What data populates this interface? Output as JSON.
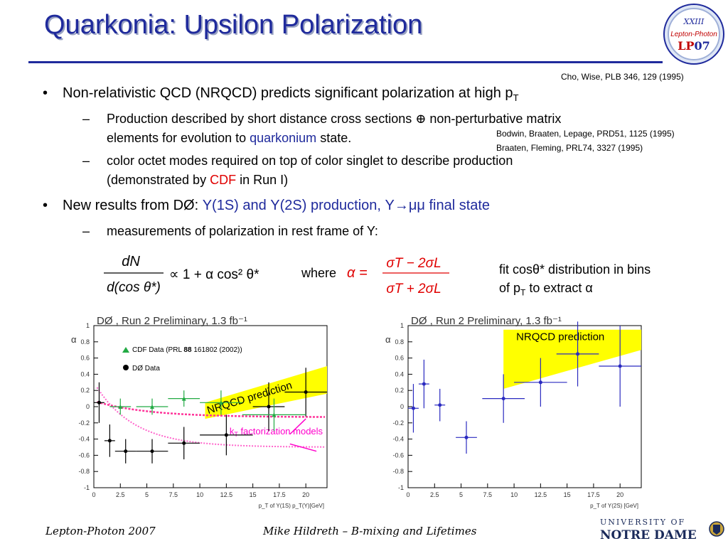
{
  "slide": {
    "title": "Quarkonia: Upsilon Polarization",
    "logo": {
      "roman": "XXIII",
      "line2": "Lepton-Photon",
      "lp": "LP",
      "yy": "07"
    },
    "citations": [
      "Cho, Wise, PLB 346, 129 (1995)",
      "Bodwin, Braaten, Lepage, PRD51, 1125 (1995)",
      "Braaten, Fleming, PRL74, 3327 (1995)"
    ],
    "bullets": {
      "b1_text": "Non-relativistic QCD (NRQCD) predicts significant polarization at high p",
      "b1_sub": "T",
      "s1_part1": "Production described by short distance cross sections ",
      "s1_oplus": "⊕",
      "s1_part2": " non-perturbative matrix",
      "s1_line2a": "elements for evolution to ",
      "s1_quarkonium": "quarkonium",
      "s1_line2b": " state.",
      "s2_line1": "color octet modes required on top of color singlet to describe production",
      "s2_line2a": "(demonstrated by ",
      "s2_cdf": "CDF",
      "s2_line2b": " in Run I)",
      "b2_text": "New results from DØ: ",
      "b2_colored": "Υ(1S) and Υ(2S) production, Υ→μμ final state",
      "s3_text": "measurements of polarization in rest frame of Y:"
    },
    "equation": {
      "numerator": "dN",
      "denominator": "d(cos θ*)",
      "rhs": "∝ 1 + α cos² θ*",
      "where": "where",
      "alpha_eq": "α =",
      "frac_num": "σT − 2σL",
      "frac_den": "σT + 2σL",
      "fit_line1": "fit cosθ* distribution in bins",
      "fit_line2a": "of p",
      "fit_line2sub": "T",
      "fit_line2b": " to extract α"
    },
    "footer": {
      "left": "Lepton-Photon 2007",
      "center": "Mike Hildreth – B-mixing and Lifetimes",
      "nd_top": "UNIVERSITY OF",
      "nd_bottom": "NOTRE DAME"
    }
  },
  "chart_data": [
    {
      "type": "scatter",
      "title": "DØ , Run 2 Preliminary, 1.3 fb⁻¹",
      "xlabel": "p_T of Υ(1S)  p_T(Υ)[GeV]",
      "ylabel": "α",
      "xlim": [
        0,
        22
      ],
      "ylim": [
        -1,
        1
      ],
      "xticks": [
        "0",
        "2.5",
        "5",
        "7.5",
        "10",
        "12.5",
        "15",
        "17.5",
        "20"
      ],
      "yticks": [
        "-1",
        "-0.8",
        "-0.6",
        "-0.4",
        "-0.2",
        "0",
        "0.2",
        "0.4",
        "0.6",
        "0.8",
        "1"
      ],
      "legend": [
        {
          "marker": "triangle",
          "label": "CDF Data (PRL ",
          "bold": "88",
          "label2": " 161802 (2002))"
        },
        {
          "marker": "circle",
          "label": "DØ Data"
        }
      ],
      "annotations": {
        "nrqcd": "NRQCD prediction",
        "kt": "k",
        "kt_sub": "T",
        "kt_rest": " factorization models"
      },
      "series": [
        {
          "name": "DØ Data",
          "color": "#000000",
          "points": [
            {
              "x": 0.5,
              "y": 0.05,
              "xerr": 0.5,
              "yerr": 0.25
            },
            {
              "x": 1.5,
              "y": -0.42,
              "xerr": 0.5,
              "yerr": 0.2
            },
            {
              "x": 3.0,
              "y": -0.55,
              "xerr": 1.0,
              "yerr": 0.15
            },
            {
              "x": 5.5,
              "y": -0.55,
              "xerr": 1.5,
              "yerr": 0.15
            },
            {
              "x": 8.5,
              "y": -0.45,
              "xerr": 1.5,
              "yerr": 0.2
            },
            {
              "x": 12.5,
              "y": -0.35,
              "xerr": 2.5,
              "yerr": 0.25
            },
            {
              "x": 16.5,
              "y": -0.0,
              "xerr": 1.5,
              "yerr": 0.3
            },
            {
              "x": 20.0,
              "y": 0.18,
              "xerr": 2.0,
              "yerr": 0.3
            }
          ]
        },
        {
          "name": "CDF Data",
          "color": "#22aa44",
          "points": [
            {
              "x": 2.5,
              "y": 0.0,
              "xerr": 1.0,
              "yerr": 0.1
            },
            {
              "x": 5.5,
              "y": 0.0,
              "xerr": 1.5,
              "yerr": 0.1
            },
            {
              "x": 8.5,
              "y": 0.1,
              "xerr": 1.5,
              "yerr": 0.1
            },
            {
              "x": 12.0,
              "y": 0.05,
              "xerr": 2.0,
              "yerr": 0.15
            },
            {
              "x": 17.0,
              "y": -0.1,
              "xerr": 3.0,
              "yerr": 0.2
            }
          ]
        }
      ]
    },
    {
      "type": "scatter",
      "title": "DØ , Run 2 Preliminary, 1.3 fb⁻¹",
      "xlabel": "p_T of Υ(2S)  [GeV]",
      "ylabel": "α",
      "xlim": [
        0,
        22
      ],
      "ylim": [
        -1,
        1
      ],
      "xticks": [
        "0",
        "2.5",
        "5",
        "7.5",
        "10",
        "12.5",
        "15",
        "17.5",
        "20"
      ],
      "yticks": [
        "-1",
        "-0.8",
        "-0.6",
        "-0.4",
        "-0.2",
        "0",
        "0.2",
        "0.4",
        "0.6",
        "0.8",
        "1"
      ],
      "annotations": {
        "nrqcd": "NRQCD prediction"
      },
      "series": [
        {
          "name": "DØ Data",
          "color": "#2a2ac0",
          "points": [
            {
              "x": 0.5,
              "y": -0.02,
              "xerr": 0.5,
              "yerr": 0.3
            },
            {
              "x": 1.5,
              "y": 0.28,
              "xerr": 0.5,
              "yerr": 0.3
            },
            {
              "x": 3.0,
              "y": 0.02,
              "xerr": 0.5,
              "yerr": 0.2
            },
            {
              "x": 5.5,
              "y": -0.38,
              "xerr": 1.0,
              "yerr": 0.2
            },
            {
              "x": 9.0,
              "y": 0.1,
              "xerr": 2.0,
              "yerr": 0.3
            },
            {
              "x": 12.5,
              "y": 0.3,
              "xerr": 2.5,
              "yerr": 0.3
            },
            {
              "x": 16.0,
              "y": 0.65,
              "xerr": 2.0,
              "yerr": 0.4
            },
            {
              "x": 20.0,
              "y": 0.5,
              "xerr": 2.0,
              "yerr": 0.5
            }
          ]
        }
      ]
    }
  ]
}
